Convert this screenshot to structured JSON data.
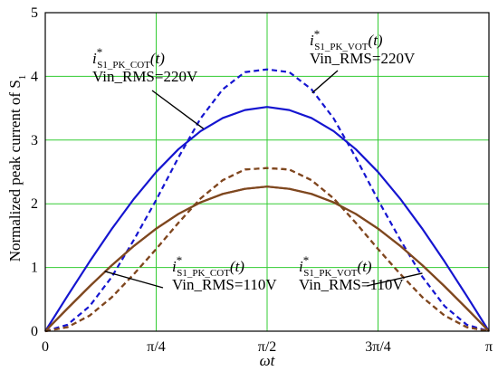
{
  "chart_data": {
    "type": "line",
    "xlabel": "ωt",
    "ylabel": "Normalized peak current of S",
    "ylabel_sub": "1",
    "xlim": [
      0,
      3.14159
    ],
    "ylim": [
      0,
      5
    ],
    "grid": true,
    "x_ticks": [
      {
        "value": 0,
        "label": "0"
      },
      {
        "value": 0.785398,
        "label": "π/4"
      },
      {
        "value": 1.570796,
        "label": "π/2"
      },
      {
        "value": 2.356194,
        "label": "3π/4"
      },
      {
        "value": 3.141593,
        "label": "π"
      }
    ],
    "y_ticks": [
      {
        "value": 0,
        "label": "0"
      },
      {
        "value": 1,
        "label": "1"
      },
      {
        "value": 2,
        "label": "2"
      },
      {
        "value": 3,
        "label": "3"
      },
      {
        "value": 4,
        "label": "4"
      },
      {
        "value": 5,
        "label": "5"
      }
    ],
    "x": [
      0,
      0.1571,
      0.3142,
      0.4712,
      0.6283,
      0.7854,
      0.9425,
      1.0996,
      1.2566,
      1.4137,
      1.5708,
      1.7279,
      1.885,
      2.042,
      2.1991,
      2.3562,
      2.5133,
      2.6704,
      2.8274,
      2.9845,
      3.1416
    ],
    "series": [
      {
        "id": "cot_220",
        "color": "#1515d0",
        "dash": "solid",
        "values": [
          0,
          0.553,
          1.093,
          1.606,
          2.079,
          2.499,
          2.856,
          3.14,
          3.346,
          3.471,
          3.52,
          3.471,
          3.346,
          3.14,
          2.856,
          2.499,
          2.079,
          1.606,
          1.093,
          0.553,
          0
        ]
      },
      {
        "id": "vot_220",
        "color": "#1515d0",
        "dash": "dashed",
        "values": [
          0,
          0.101,
          0.393,
          0.853,
          1.437,
          2.06,
          2.725,
          3.34,
          3.797,
          4.066,
          4.11,
          4.066,
          3.797,
          3.34,
          2.725,
          2.06,
          1.437,
          0.853,
          0.393,
          0.101,
          0
        ]
      },
      {
        "id": "cot_110",
        "color": "#d41414",
        "dash": "solid",
        "values": [
          0,
          0.356,
          0.704,
          1.034,
          1.339,
          1.61,
          1.84,
          2.022,
          2.155,
          2.235,
          2.27,
          2.235,
          2.155,
          2.022,
          1.84,
          1.61,
          1.339,
          1.034,
          0.704,
          0.356,
          0
        ]
      },
      {
        "id": "vot_110",
        "color": "#d41414",
        "dash": "dashed",
        "values": [
          0,
          0.063,
          0.245,
          0.533,
          0.898,
          1.29,
          1.7,
          2.084,
          2.37,
          2.538,
          2.56,
          2.538,
          2.37,
          2.084,
          1.7,
          1.29,
          0.898,
          0.533,
          0.245,
          0.063,
          0
        ]
      },
      {
        "id": "cot_110_brown",
        "color": "#7a4a1f",
        "dash": "solid",
        "values": [
          0,
          0.356,
          0.704,
          1.034,
          1.339,
          1.61,
          1.84,
          2.022,
          2.155,
          2.235,
          2.27,
          2.235,
          2.155,
          2.022,
          1.84,
          1.61,
          1.339,
          1.034,
          0.704,
          0.356,
          0
        ]
      },
      {
        "id": "vot_110_brown",
        "color": "#7a4a1f",
        "dash": "dashed",
        "values": [
          0,
          0.063,
          0.245,
          0.533,
          0.898,
          1.29,
          1.7,
          2.084,
          2.37,
          2.538,
          2.56,
          2.538,
          2.37,
          2.084,
          1.7,
          1.29,
          0.898,
          0.533,
          0.245,
          0.063,
          0
        ]
      }
    ],
    "annotations": [
      {
        "id": "cot_220",
        "i": "i",
        "sub": "S1_PK_COT",
        "sup": "*",
        "arg": "(t)",
        "line2": "Vin_RMS=220V",
        "pointer_x": 1.12,
        "pointer_y": 3.18
      },
      {
        "id": "vot_220",
        "i": "i",
        "sub": "S1_PK_VOT",
        "sup": "*",
        "arg": "(t)",
        "line2": "Vin_RMS=220V",
        "pointer_x": 1.89,
        "pointer_y": 3.74
      },
      {
        "id": "cot_110",
        "i": "i",
        "sub": "S1_PK_COT",
        "sup": "*",
        "arg": "(t)",
        "line2": "Vin_RMS=110V",
        "pointer_x": 0.42,
        "pointer_y": 0.94
      },
      {
        "id": "vot_110",
        "i": "i",
        "sub": "S1_PK_VOT",
        "sup": "*",
        "arg": "(t)",
        "line2": "Vin_RMS=110V",
        "pointer_x": 2.67,
        "pointer_y": 0.91
      }
    ]
  }
}
